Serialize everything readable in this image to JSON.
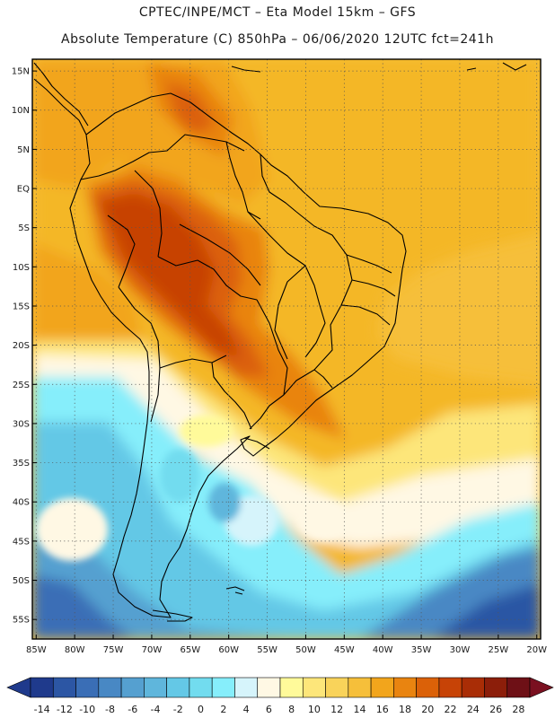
{
  "title": {
    "line1": "CPTEC/INPE/MCT –  Eta Model 15km – GFS",
    "line2": "Absolute Temperature (C) 850hPa – 06/06/2020 12UTC fct=241h"
  },
  "map": {
    "lat_labels": [
      "15N",
      "10N",
      "5N",
      "EQ",
      "5S",
      "10S",
      "15S",
      "20S",
      "25S",
      "30S",
      "35S",
      "40S",
      "45S",
      "50S",
      "55S"
    ],
    "lon_labels": [
      "85W",
      "80W",
      "75W",
      "70W",
      "65W",
      "60W",
      "55W",
      "50W",
      "45W",
      "40W",
      "35W",
      "30W",
      "25W",
      "20W"
    ],
    "lat_values": [
      15,
      10,
      5,
      0,
      -5,
      -10,
      -15,
      -20,
      -25,
      -30,
      -35,
      -40,
      -45,
      -50,
      -55
    ],
    "lon_values": [
      -85,
      -80,
      -75,
      -70,
      -65,
      -60,
      -55,
      -50,
      -45,
      -40,
      -35,
      -30,
      -25,
      -20
    ],
    "lat_range": [
      -57.5,
      16.5
    ],
    "lon_range": [
      -85.5,
      -19.5
    ],
    "gridlines": "dotted"
  },
  "colorbar": {
    "labels": [
      "-14",
      "-12",
      "-10",
      "-8",
      "-6",
      "-4",
      "-2",
      "0",
      "2",
      "4",
      "6",
      "8",
      "10",
      "12",
      "14",
      "16",
      "18",
      "20",
      "22",
      "24",
      "26",
      "28"
    ],
    "colors": [
      "#1f3a8c",
      "#2c56a4",
      "#3a6eb6",
      "#4888c4",
      "#55a0d0",
      "#5fb6dc",
      "#64c8e6",
      "#72dcef",
      "#86eefb",
      "#d6f4fb",
      "#fff8e4",
      "#fffa9a",
      "#fde67a",
      "#f9d35a",
      "#f6bf3a",
      "#f2a51c",
      "#e98410",
      "#db6108",
      "#c74306",
      "#a92d06",
      "#8c1e0a",
      "#6e1016"
    ],
    "under_color": "#1f3a8c",
    "over_color": "#7a1020"
  }
}
